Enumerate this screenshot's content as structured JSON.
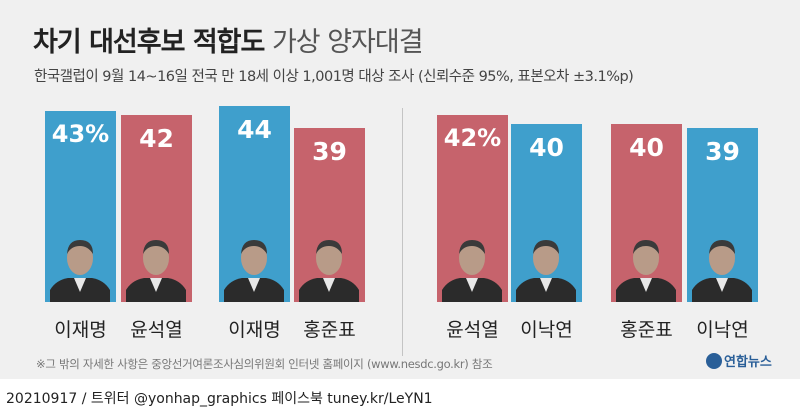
{
  "title_bold": "차기 대선후보 적합도",
  "title_light": "가상 양자대결",
  "subtitle": "한국갤럽이 9월 14~16일 전국 만 18세 이상 1,001명 대상 조사 (신뢰수준 95%, 표본오차 ±3.1%p)",
  "note": "※그 밖의 자세한 사항은 중앙선거여론조사심의위원회 인터넷 홈페이지 (www.nesdc.go.kr) 참조",
  "logo": "연합뉴스",
  "footer": "20210917 / 트위터 @yonhap_graphics  페이스북 tuney.kr/LeYN1",
  "colors": {
    "blue": "#3f9fcc",
    "red": "#c6636c",
    "panel": "#f0f0f0"
  },
  "chart_data": [
    {
      "type": "bar",
      "categories": [
        "이재명",
        "윤석열"
      ],
      "values": [
        43,
        42
      ],
      "labels": [
        "43%",
        "42"
      ],
      "colors": [
        "#3f9fcc",
        "#c6636c"
      ]
    },
    {
      "type": "bar",
      "categories": [
        "이재명",
        "홍준표"
      ],
      "values": [
        44,
        39
      ],
      "labels": [
        "44",
        "39"
      ],
      "colors": [
        "#3f9fcc",
        "#c6636c"
      ]
    },
    {
      "type": "bar",
      "categories": [
        "윤석열",
        "이낙연"
      ],
      "values": [
        42,
        40
      ],
      "labels": [
        "42%",
        "40"
      ],
      "colors": [
        "#c6636c",
        "#3f9fcc"
      ]
    },
    {
      "type": "bar",
      "categories": [
        "홍준표",
        "이낙연"
      ],
      "values": [
        40,
        39
      ],
      "labels": [
        "40",
        "39"
      ],
      "colors": [
        "#c6636c",
        "#3f9fcc"
      ]
    }
  ]
}
